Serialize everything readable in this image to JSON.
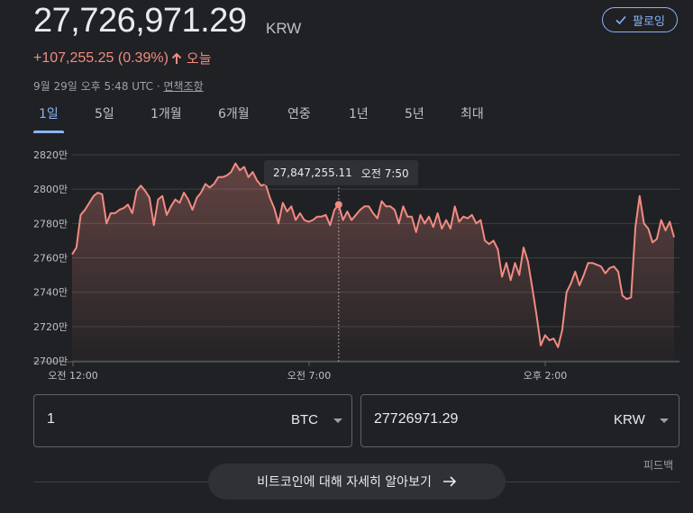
{
  "header": {
    "price": "27,726,971.29",
    "currency": "KRW",
    "follow_label": "팔로잉",
    "change": "+107,255.25 (0.39%)",
    "change_period": "오늘",
    "timestamp": "9월 29일 오후 5:48 UTC · ",
    "disclaimer": "면책조항"
  },
  "tabs": [
    {
      "label": "1일",
      "active": true
    },
    {
      "label": "5일"
    },
    {
      "label": "1개월"
    },
    {
      "label": "6개월"
    },
    {
      "label": "연중"
    },
    {
      "label": "1년"
    },
    {
      "label": "5년"
    },
    {
      "label": "최대"
    }
  ],
  "tooltip": {
    "value": "27,847,255.11",
    "time": "오전 7:50"
  },
  "chart_data": {
    "type": "line",
    "ylim": [
      2700,
      2820
    ],
    "y_unit": "만 KRW",
    "y_ticks": [
      "2820만",
      "2800만",
      "2780만",
      "2760만",
      "2740만",
      "2720만",
      "2700만"
    ],
    "x_ticks": [
      "오전 12:00",
      "오전 7:00",
      "오후 2:00"
    ],
    "line_color": "#f28b82",
    "values": [
      2762,
      2766,
      2785,
      2788,
      2792,
      2796,
      2798,
      2797,
      2780,
      2786,
      2786,
      2788,
      2789,
      2791,
      2786,
      2799,
      2802,
      2799,
      2795,
      2779,
      2794,
      2796,
      2785,
      2790,
      2794,
      2792,
      2798,
      2794,
      2788,
      2795,
      2798,
      2803,
      2801,
      2803,
      2807,
      2807,
      2808,
      2810,
      2815,
      2811,
      2813,
      2807,
      2810,
      2805,
      2802,
      2803,
      2795,
      2789,
      2780,
      2792,
      2787,
      2790,
      2782,
      2786,
      2782,
      2781,
      2782,
      2784,
      2784,
      2785,
      2779,
      2788,
      2791,
      2782,
      2787,
      2782,
      2785,
      2788,
      2790,
      2790,
      2786,
      2783,
      2793,
      2790,
      2790,
      2788,
      2780,
      2790,
      2784,
      2784,
      2775,
      2785,
      2780,
      2784,
      2778,
      2786,
      2777,
      2782,
      2777,
      2790,
      2781,
      2784,
      2783,
      2785,
      2780,
      2782,
      2770,
      2768,
      2770,
      2765,
      2749,
      2757,
      2747,
      2757,
      2750,
      2766,
      2758,
      2743,
      2727,
      2709,
      2715,
      2712,
      2713,
      2708,
      2718,
      2740,
      2745,
      2752,
      2744,
      2750,
      2757,
      2757,
      2756,
      2755,
      2751,
      2754,
      2755,
      2752,
      2738,
      2736,
      2737,
      2778,
      2796,
      2780,
      2777,
      2769,
      2771,
      2782,
      2776,
      2781,
      2772
    ]
  },
  "converter": {
    "from": {
      "value": "1",
      "unit": "BTC"
    },
    "to": {
      "value": "27726971.29",
      "unit": "KRW"
    }
  },
  "footer": {
    "feedback": "피드백",
    "learn_more": "비트코인에 대해 자세히 알아보기"
  },
  "colors": {
    "background": "#202124",
    "accent": "#8ab4f8",
    "negative_line": "#f28b82"
  }
}
